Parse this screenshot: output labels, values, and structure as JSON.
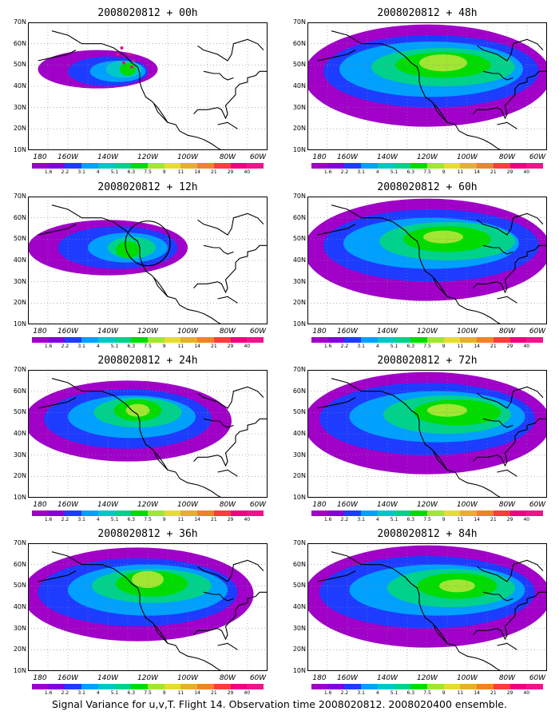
{
  "caption": "Signal Variance for u,v,T. Flight 14. Observation time 2008020812. 2008020400 ensemble.",
  "lat_labels": [
    "70N",
    "60N",
    "50N",
    "40N",
    "30N",
    "20N",
    "10N"
  ],
  "lon_labels": [
    "180",
    "160W",
    "140W",
    "120W",
    "100W",
    "80W",
    "60W"
  ],
  "colorbar": {
    "labels": [
      "1.6",
      "2.2",
      "3.1",
      "4",
      "5.1",
      "6.3",
      "7.5",
      "9",
      "11",
      "14",
      "21",
      "29",
      "40"
    ],
    "colors": [
      "#a000c8",
      "#8200dc",
      "#1e3cff",
      "#00a0ff",
      "#00c8c8",
      "#00d28c",
      "#00dc00",
      "#a0e632",
      "#e6dc32",
      "#e6af2d",
      "#f08228",
      "#fa3c3c",
      "#f00082",
      "#f0148c"
    ]
  },
  "panels": [
    {
      "title": "2008020812 + 00h"
    },
    {
      "title": "2008020812 + 48h"
    },
    {
      "title": "2008020812 + 12h"
    },
    {
      "title": "2008020812 + 60h"
    },
    {
      "title": "2008020812 + 24h"
    },
    {
      "title": "2008020812 + 72h"
    },
    {
      "title": "2008020812 + 36h"
    },
    {
      "title": "2008020812 + 84h"
    }
  ]
}
